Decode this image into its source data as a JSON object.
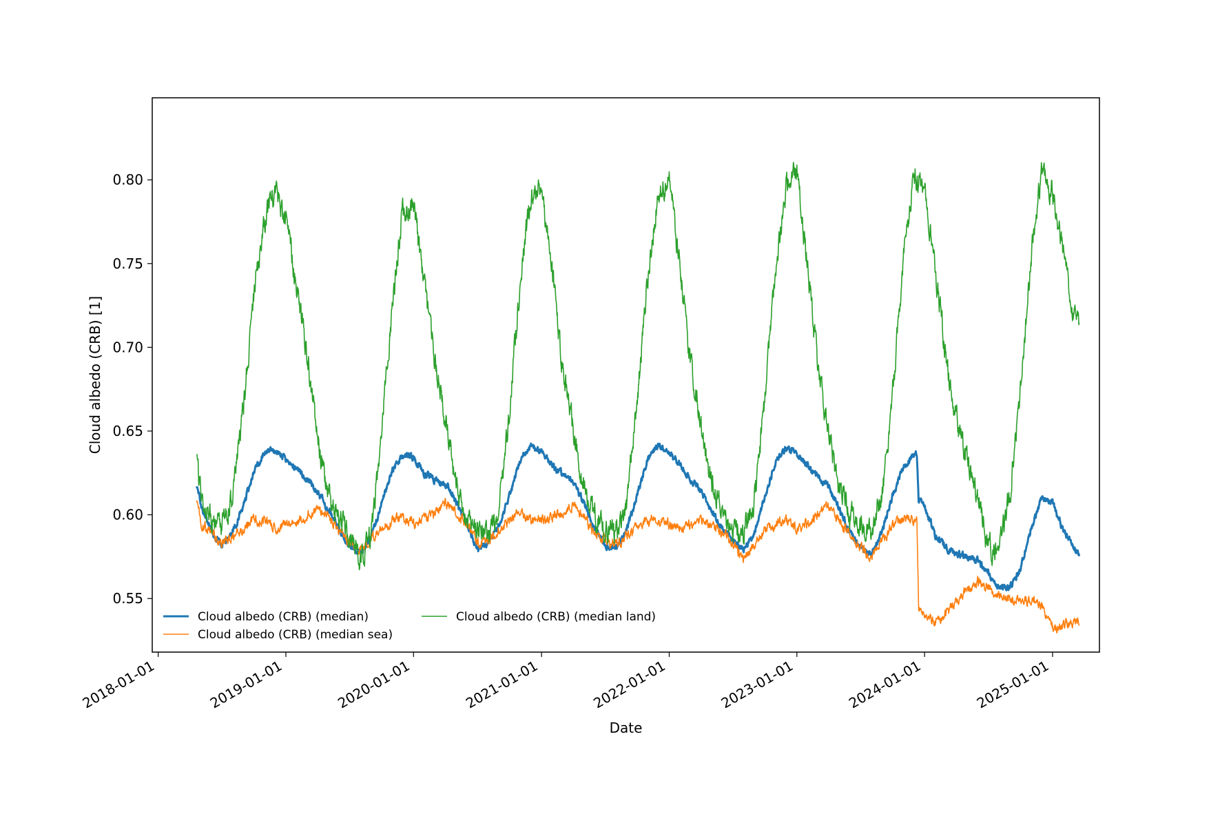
{
  "chart_data": {
    "type": "line",
    "title": "",
    "xlabel": "Date",
    "ylabel": "Cloud albedo (CRB) [1]",
    "xlim": [
      "2017-12-15",
      "2025-05-15"
    ],
    "ylim": [
      0.518,
      0.849
    ],
    "x_ticks": [
      "2018-01-01",
      "2019-01-01",
      "2020-01-01",
      "2021-01-01",
      "2022-01-01",
      "2023-01-01",
      "2024-01-01",
      "2025-01-01"
    ],
    "y_ticks": [
      0.55,
      0.6,
      0.65,
      0.7,
      0.75,
      0.8
    ],
    "y_tick_labels": [
      "0.55",
      "0.60",
      "0.65",
      "0.70",
      "0.75",
      "0.80"
    ],
    "grid": false,
    "legend": {
      "placement": "lower-left",
      "columns": 2
    },
    "series": [
      {
        "name": "Cloud albedo (CRB) (median)",
        "color": "#1f77b4",
        "line_width": "thick",
        "points": [
          [
            "2018-04-21",
            0.618
          ],
          [
            "2018-05-05",
            0.604
          ],
          [
            "2018-06-05",
            0.59
          ],
          [
            "2018-07-01",
            0.582
          ],
          [
            "2018-08-01",
            0.589
          ],
          [
            "2018-09-01",
            0.605
          ],
          [
            "2018-10-01",
            0.625
          ],
          [
            "2018-11-01",
            0.637
          ],
          [
            "2018-12-01",
            0.638
          ],
          [
            "2019-01-01",
            0.633
          ],
          [
            "2019-02-01",
            0.628
          ],
          [
            "2019-03-01",
            0.622
          ],
          [
            "2019-04-01",
            0.613
          ],
          [
            "2019-05-01",
            0.604
          ],
          [
            "2019-06-01",
            0.592
          ],
          [
            "2019-07-01",
            0.581
          ],
          [
            "2019-08-01",
            0.577
          ],
          [
            "2019-09-01",
            0.586
          ],
          [
            "2019-10-01",
            0.606
          ],
          [
            "2019-11-01",
            0.627
          ],
          [
            "2019-12-01",
            0.636
          ],
          [
            "2020-01-01",
            0.634
          ],
          [
            "2020-02-01",
            0.625
          ],
          [
            "2020-03-01",
            0.621
          ],
          [
            "2020-04-01",
            0.619
          ],
          [
            "2020-05-01",
            0.608
          ],
          [
            "2020-06-01",
            0.594
          ],
          [
            "2020-07-01",
            0.58
          ],
          [
            "2020-08-01",
            0.583
          ],
          [
            "2020-09-01",
            0.593
          ],
          [
            "2020-10-01",
            0.611
          ],
          [
            "2020-11-01",
            0.632
          ],
          [
            "2020-12-01",
            0.641
          ],
          [
            "2021-01-01",
            0.638
          ],
          [
            "2021-02-01",
            0.629
          ],
          [
            "2021-03-01",
            0.625
          ],
          [
            "2021-04-01",
            0.62
          ],
          [
            "2021-05-01",
            0.608
          ],
          [
            "2021-06-01",
            0.593
          ],
          [
            "2021-07-01",
            0.582
          ],
          [
            "2021-08-01",
            0.579
          ],
          [
            "2021-09-01",
            0.59
          ],
          [
            "2021-10-01",
            0.612
          ],
          [
            "2021-11-01",
            0.634
          ],
          [
            "2021-12-01",
            0.642
          ],
          [
            "2022-01-01",
            0.637
          ],
          [
            "2022-02-01",
            0.63
          ],
          [
            "2022-03-01",
            0.622
          ],
          [
            "2022-04-01",
            0.614
          ],
          [
            "2022-05-01",
            0.603
          ],
          [
            "2022-06-01",
            0.593
          ],
          [
            "2022-07-01",
            0.585
          ],
          [
            "2022-08-01",
            0.579
          ],
          [
            "2022-09-01",
            0.589
          ],
          [
            "2022-10-01",
            0.61
          ],
          [
            "2022-11-01",
            0.632
          ],
          [
            "2022-12-01",
            0.64
          ],
          [
            "2023-01-01",
            0.637
          ],
          [
            "2023-02-01",
            0.629
          ],
          [
            "2023-03-01",
            0.623
          ],
          [
            "2023-04-01",
            0.617
          ],
          [
            "2023-05-01",
            0.604
          ],
          [
            "2023-06-01",
            0.59
          ],
          [
            "2023-07-01",
            0.581
          ],
          [
            "2023-08-01",
            0.576
          ],
          [
            "2023-09-01",
            0.59
          ],
          [
            "2023-10-01",
            0.611
          ],
          [
            "2023-11-01",
            0.628
          ],
          [
            "2023-12-01",
            0.637
          ],
          [
            "2023-12-10",
            0.637
          ],
          [
            "2023-12-15",
            0.609
          ],
          [
            "2024-01-01",
            0.605
          ],
          [
            "2024-02-01",
            0.588
          ],
          [
            "2024-03-01",
            0.58
          ],
          [
            "2024-04-01",
            0.577
          ],
          [
            "2024-05-01",
            0.575
          ],
          [
            "2024-06-01",
            0.573
          ],
          [
            "2024-07-01",
            0.566
          ],
          [
            "2024-08-01",
            0.557
          ],
          [
            "2024-09-01",
            0.556
          ],
          [
            "2024-10-01",
            0.568
          ],
          [
            "2024-11-01",
            0.592
          ],
          [
            "2024-12-01",
            0.61
          ],
          [
            "2025-01-01",
            0.607
          ],
          [
            "2025-02-01",
            0.59
          ],
          [
            "2025-03-01",
            0.581
          ],
          [
            "2025-03-18",
            0.575
          ]
        ]
      },
      {
        "name": "Cloud albedo (CRB) (median sea)",
        "color": "#ff7f0e",
        "line_width": "thin",
        "points": [
          [
            "2018-04-21",
            0.607
          ],
          [
            "2018-05-05",
            0.594
          ],
          [
            "2018-06-05",
            0.589
          ],
          [
            "2018-07-01",
            0.582
          ],
          [
            "2018-08-01",
            0.586
          ],
          [
            "2018-09-01",
            0.592
          ],
          [
            "2018-10-01",
            0.598
          ],
          [
            "2018-11-01",
            0.596
          ],
          [
            "2018-12-01",
            0.592
          ],
          [
            "2019-01-01",
            0.594
          ],
          [
            "2019-02-01",
            0.596
          ],
          [
            "2019-03-01",
            0.599
          ],
          [
            "2019-04-01",
            0.603
          ],
          [
            "2019-05-01",
            0.599
          ],
          [
            "2019-06-01",
            0.591
          ],
          [
            "2019-07-01",
            0.583
          ],
          [
            "2019-08-01",
            0.578
          ],
          [
            "2019-09-01",
            0.585
          ],
          [
            "2019-10-01",
            0.592
          ],
          [
            "2019-11-01",
            0.597
          ],
          [
            "2019-12-01",
            0.598
          ],
          [
            "2020-01-01",
            0.594
          ],
          [
            "2020-02-01",
            0.597
          ],
          [
            "2020-03-01",
            0.601
          ],
          [
            "2020-04-01",
            0.607
          ],
          [
            "2020-05-01",
            0.602
          ],
          [
            "2020-06-01",
            0.594
          ],
          [
            "2020-07-01",
            0.583
          ],
          [
            "2020-08-01",
            0.585
          ],
          [
            "2020-09-01",
            0.591
          ],
          [
            "2020-10-01",
            0.597
          ],
          [
            "2020-11-01",
            0.601
          ],
          [
            "2020-12-01",
            0.597
          ],
          [
            "2021-01-01",
            0.597
          ],
          [
            "2021-02-01",
            0.599
          ],
          [
            "2021-03-01",
            0.601
          ],
          [
            "2021-04-01",
            0.606
          ],
          [
            "2021-05-01",
            0.598
          ],
          [
            "2021-06-01",
            0.589
          ],
          [
            "2021-07-01",
            0.584
          ],
          [
            "2021-08-01",
            0.582
          ],
          [
            "2021-09-01",
            0.587
          ],
          [
            "2021-10-01",
            0.593
          ],
          [
            "2021-11-01",
            0.597
          ],
          [
            "2021-12-01",
            0.597
          ],
          [
            "2022-01-01",
            0.594
          ],
          [
            "2022-02-01",
            0.593
          ],
          [
            "2022-03-01",
            0.594
          ],
          [
            "2022-04-01",
            0.597
          ],
          [
            "2022-05-01",
            0.594
          ],
          [
            "2022-06-01",
            0.589
          ],
          [
            "2022-07-01",
            0.583
          ],
          [
            "2022-08-01",
            0.573
          ],
          [
            "2022-09-01",
            0.582
          ],
          [
            "2022-10-01",
            0.591
          ],
          [
            "2022-11-01",
            0.595
          ],
          [
            "2022-12-01",
            0.596
          ],
          [
            "2023-01-01",
            0.591
          ],
          [
            "2023-02-01",
            0.595
          ],
          [
            "2023-03-01",
            0.599
          ],
          [
            "2023-04-01",
            0.605
          ],
          [
            "2023-05-01",
            0.596
          ],
          [
            "2023-06-01",
            0.589
          ],
          [
            "2023-07-01",
            0.581
          ],
          [
            "2023-08-01",
            0.574
          ],
          [
            "2023-09-01",
            0.585
          ],
          [
            "2023-10-01",
            0.593
          ],
          [
            "2023-11-01",
            0.598
          ],
          [
            "2023-12-01",
            0.597
          ],
          [
            "2023-12-10",
            0.597
          ],
          [
            "2023-12-15",
            0.543
          ],
          [
            "2024-01-01",
            0.54
          ],
          [
            "2024-02-01",
            0.535
          ],
          [
            "2024-03-01",
            0.54
          ],
          [
            "2024-04-01",
            0.548
          ],
          [
            "2024-05-01",
            0.555
          ],
          [
            "2024-06-01",
            0.56
          ],
          [
            "2024-07-01",
            0.557
          ],
          [
            "2024-08-01",
            0.552
          ],
          [
            "2024-09-01",
            0.55
          ],
          [
            "2024-10-01",
            0.549
          ],
          [
            "2024-11-01",
            0.548
          ],
          [
            "2024-12-01",
            0.546
          ],
          [
            "2025-01-01",
            0.531
          ],
          [
            "2025-02-01",
            0.534
          ],
          [
            "2025-03-01",
            0.536
          ],
          [
            "2025-03-18",
            0.537
          ]
        ]
      },
      {
        "name": "Cloud albedo (CRB) (median land)",
        "color": "#2ca02c",
        "line_width": "thin",
        "points": [
          [
            "2018-04-21",
            0.632
          ],
          [
            "2018-05-05",
            0.61
          ],
          [
            "2018-06-05",
            0.596
          ],
          [
            "2018-07-01",
            0.593
          ],
          [
            "2018-08-01",
            0.609
          ],
          [
            "2018-09-01",
            0.662
          ],
          [
            "2018-10-01",
            0.73
          ],
          [
            "2018-11-01",
            0.776
          ],
          [
            "2018-12-01",
            0.793
          ],
          [
            "2019-01-01",
            0.777
          ],
          [
            "2019-02-01",
            0.738
          ],
          [
            "2019-03-01",
            0.698
          ],
          [
            "2019-04-01",
            0.648
          ],
          [
            "2019-05-01",
            0.612
          ],
          [
            "2019-06-01",
            0.597
          ],
          [
            "2019-07-01",
            0.586
          ],
          [
            "2019-08-01",
            0.571
          ],
          [
            "2019-09-01",
            0.588
          ],
          [
            "2019-10-01",
            0.645
          ],
          [
            "2019-11-01",
            0.725
          ],
          [
            "2019-12-01",
            0.782
          ],
          [
            "2020-01-01",
            0.787
          ],
          [
            "2020-02-01",
            0.735
          ],
          [
            "2020-03-01",
            0.695
          ],
          [
            "2020-04-01",
            0.657
          ],
          [
            "2020-05-01",
            0.617
          ],
          [
            "2020-06-01",
            0.599
          ],
          [
            "2020-07-01",
            0.593
          ],
          [
            "2020-08-01",
            0.585
          ],
          [
            "2020-09-01",
            0.603
          ],
          [
            "2020-10-01",
            0.659
          ],
          [
            "2020-11-01",
            0.74
          ],
          [
            "2020-12-01",
            0.79
          ],
          [
            "2021-01-01",
            0.795
          ],
          [
            "2021-02-01",
            0.746
          ],
          [
            "2021-03-01",
            0.689
          ],
          [
            "2021-04-01",
            0.652
          ],
          [
            "2021-05-01",
            0.616
          ],
          [
            "2021-06-01",
            0.6
          ],
          [
            "2021-07-01",
            0.593
          ],
          [
            "2021-08-01",
            0.588
          ],
          [
            "2021-09-01",
            0.607
          ],
          [
            "2021-10-01",
            0.667
          ],
          [
            "2021-11-01",
            0.744
          ],
          [
            "2021-12-01",
            0.794
          ],
          [
            "2022-01-01",
            0.801
          ],
          [
            "2022-02-01",
            0.748
          ],
          [
            "2022-03-01",
            0.694
          ],
          [
            "2022-04-01",
            0.653
          ],
          [
            "2022-05-01",
            0.621
          ],
          [
            "2022-06-01",
            0.602
          ],
          [
            "2022-07-01",
            0.592
          ],
          [
            "2022-08-01",
            0.589
          ],
          [
            "2022-09-01",
            0.608
          ],
          [
            "2022-10-01",
            0.667
          ],
          [
            "2022-11-01",
            0.748
          ],
          [
            "2022-12-01",
            0.797
          ],
          [
            "2023-01-01",
            0.805
          ],
          [
            "2023-02-01",
            0.746
          ],
          [
            "2023-03-01",
            0.692
          ],
          [
            "2023-04-01",
            0.65
          ],
          [
            "2023-05-01",
            0.617
          ],
          [
            "2023-06-01",
            0.601
          ],
          [
            "2023-07-01",
            0.594
          ],
          [
            "2023-08-01",
            0.588
          ],
          [
            "2023-09-01",
            0.609
          ],
          [
            "2023-10-01",
            0.668
          ],
          [
            "2023-11-01",
            0.754
          ],
          [
            "2023-12-01",
            0.8
          ],
          [
            "2024-01-01",
            0.796
          ],
          [
            "2024-02-01",
            0.745
          ],
          [
            "2024-03-01",
            0.697
          ],
          [
            "2024-04-01",
            0.657
          ],
          [
            "2024-05-01",
            0.633
          ],
          [
            "2024-06-01",
            0.613
          ],
          [
            "2024-07-01",
            0.58
          ],
          [
            "2024-08-01",
            0.58
          ],
          [
            "2024-09-01",
            0.612
          ],
          [
            "2024-10-01",
            0.675
          ],
          [
            "2024-11-01",
            0.753
          ],
          [
            "2024-12-01",
            0.806
          ],
          [
            "2025-01-01",
            0.793
          ],
          [
            "2025-02-01",
            0.755
          ],
          [
            "2025-03-01",
            0.72
          ],
          [
            "2025-03-18",
            0.713
          ]
        ]
      }
    ]
  }
}
